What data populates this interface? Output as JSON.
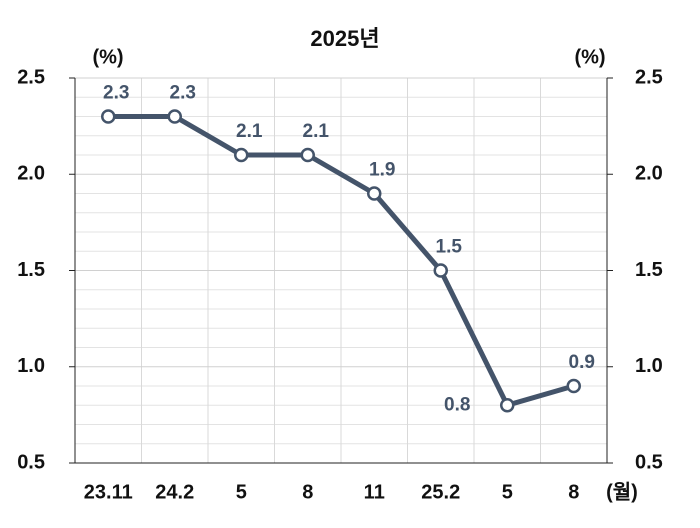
{
  "chart_data": {
    "type": "line",
    "title": "2025년",
    "y_unit_left": "(%)",
    "y_unit_right": "(%)",
    "x_unit": "(월)",
    "categories": [
      "23.11",
      "24.2",
      "5",
      "8",
      "11",
      "25.2",
      "5",
      "8"
    ],
    "series": [
      {
        "name": "rate",
        "color": "#44546a",
        "values": [
          2.3,
          2.3,
          2.1,
          2.1,
          1.9,
          1.5,
          0.8,
          0.9
        ]
      }
    ],
    "ylim": [
      0.5,
      2.5
    ],
    "yticks": [
      0.5,
      {
        "value": 1.0,
        "label": "1.0"
      },
      1.5,
      {
        "value": 2.0,
        "label": "2.0"
      },
      2.5
    ],
    "y2lim": [
      0.5,
      2.5
    ],
    "y2ticks": [
      0.5,
      {
        "value": 1.0,
        "label": "1.0"
      },
      1.5,
      {
        "value": 2.0,
        "label": "2.0"
      },
      2.5
    ],
    "grid": true
  }
}
